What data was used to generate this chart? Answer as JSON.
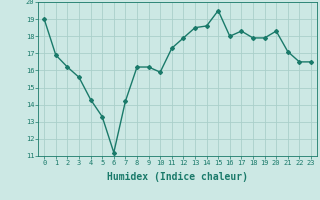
{
  "x": [
    0,
    1,
    2,
    3,
    4,
    5,
    6,
    7,
    8,
    9,
    10,
    11,
    12,
    13,
    14,
    15,
    16,
    17,
    18,
    19,
    20,
    21,
    22,
    23
  ],
  "y": [
    19.0,
    16.9,
    16.2,
    15.6,
    14.3,
    13.3,
    11.2,
    14.2,
    16.2,
    16.2,
    15.9,
    17.3,
    17.9,
    18.5,
    18.6,
    19.5,
    18.0,
    18.3,
    17.9,
    17.9,
    18.3,
    17.1,
    16.5,
    16.5
  ],
  "line_color": "#1a7a6a",
  "marker": "D",
  "marker_size": 2,
  "bg_color": "#cce8e4",
  "grid_color": "#aacfca",
  "xlabel": "Humidex (Indice chaleur)",
  "ylim": [
    11,
    20
  ],
  "xlim": [
    -0.5,
    23.5
  ],
  "yticks": [
    11,
    12,
    13,
    14,
    15,
    16,
    17,
    18,
    19,
    20
  ],
  "xticks": [
    0,
    1,
    2,
    3,
    4,
    5,
    6,
    7,
    8,
    9,
    10,
    11,
    12,
    13,
    14,
    15,
    16,
    17,
    18,
    19,
    20,
    21,
    22,
    23
  ],
  "tick_label_fontsize": 5.0,
  "xlabel_fontsize": 7.0,
  "line_width": 1.0
}
